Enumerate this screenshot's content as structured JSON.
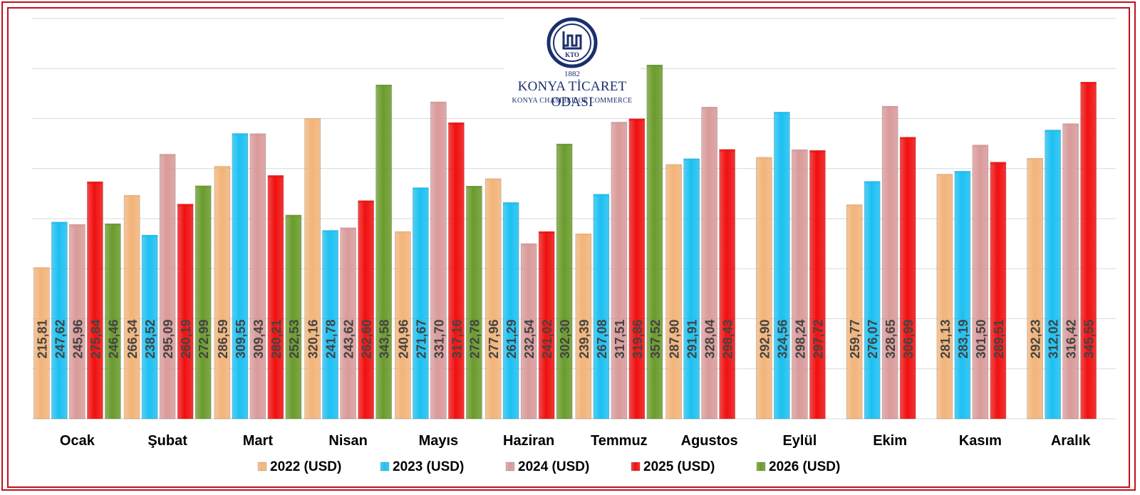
{
  "logo": {
    "year": "1882",
    "name": "KONYA TİCARET ODASI",
    "subtitle": "KONYA CHAMBER OF COMMERCE",
    "monogram": "KTO",
    "icon": "kto-emblem-icon"
  },
  "colors": {
    "frame": "#c0101e",
    "grid": "#d9d9d9",
    "label": "#444444"
  },
  "chart_data": {
    "type": "bar",
    "title": "",
    "xlabel": "",
    "ylabel": "",
    "ylim": [
      110,
      390
    ],
    "grid": true,
    "legend_position": "bottom",
    "categories": [
      "Ocak",
      "Şubat",
      "Mart",
      "Nisan",
      "Mayıs",
      "Haziran",
      "Temmuz",
      "Agustos",
      "Eylül",
      "Ekim",
      "Kasım",
      "Aralık"
    ],
    "series": [
      {
        "name": "2022 (USD)",
        "color": "#f2b47a",
        "values": [
          215.81,
          266.34,
          286.59,
          320.16,
          240.96,
          277.96,
          239.39,
          287.9,
          292.9,
          259.77,
          281.13,
          292.23
        ],
        "labels": [
          "215,81",
          "266,34",
          "286,59",
          "320,16",
          "240,96",
          "277,96",
          "239,39",
          "287,90",
          "292,90",
          "259,77",
          "281,13",
          "292,23"
        ]
      },
      {
        "name": "2023 (USD)",
        "color": "#1cc0f2",
        "values": [
          247.62,
          238.52,
          309.55,
          241.78,
          271.67,
          261.29,
          267.08,
          291.91,
          324.56,
          276.07,
          283.19,
          312.02
        ],
        "labels": [
          "247,62",
          "238,52",
          "309,55",
          "241,78",
          "271,67",
          "261,29",
          "267,08",
          "291,91",
          "324,56",
          "276,07",
          "283,19",
          "312,02"
        ]
      },
      {
        "name": "2024 (USD)",
        "color": "#d99a9a",
        "values": [
          245.96,
          295.09,
          309.43,
          243.62,
          331.7,
          232.54,
          317.51,
          328.04,
          298.24,
          328.65,
          301.5,
          316.42
        ],
        "labels": [
          "245,96",
          "295,09",
          "309,43",
          "243,62",
          "331,70",
          "232,54",
          "317,51",
          "328,04",
          "298,24",
          "328,65",
          "301,50",
          "316,42"
        ]
      },
      {
        "name": "2025 (USD)",
        "color": "#f01010",
        "values": [
          275.84,
          260.19,
          280.21,
          262.6,
          317.16,
          241.02,
          319.86,
          298.43,
          297.72,
          306.99,
          289.51,
          345.55
        ],
        "labels": [
          "275,84",
          "260,19",
          "280,21",
          "262,60",
          "317,16",
          "241,02",
          "319,86",
          "298,43",
          "297,72",
          "306,99",
          "289,51",
          "345,55"
        ]
      },
      {
        "name": "2026 (USD)",
        "color": "#6a9b2c",
        "values": [
          246.46,
          272.99,
          252.53,
          343.58,
          272.78,
          302.3,
          357.52,
          null,
          null,
          null,
          null,
          null
        ],
        "labels": [
          "246,46",
          "272,99",
          "252,53",
          "343,58",
          "272,78",
          "302,30",
          "357,52",
          "",
          "",
          "",
          "",
          ""
        ]
      }
    ]
  }
}
